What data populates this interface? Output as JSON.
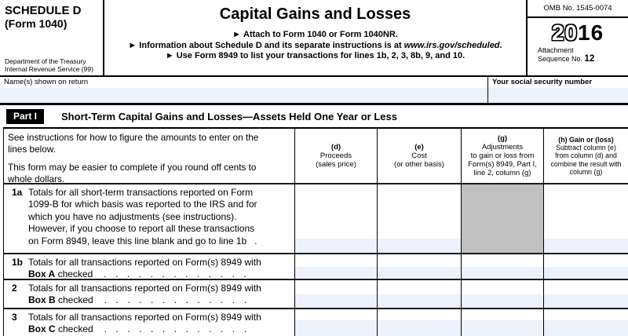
{
  "colors": {
    "field_fill": "#edf1fb",
    "shaded_cell": "#c1c1c1",
    "ink": "#000000"
  },
  "header": {
    "schedule": "SCHEDULE D",
    "form_number": "(Form 1040)",
    "dept_line1": "Department of the Treasury",
    "dept_line2": "Internal Revenue Service (99)",
    "title": "Capital Gains and Losses",
    "arrow": "►",
    "bullet1": "Attach to Form 1040 or Form 1040NR.",
    "bullet2_pre": "Information about Schedule D and its separate instructions is at ",
    "bullet2_link": "www.irs.gov/scheduled",
    "bullet2_post": ".",
    "bullet3": "Use Form 8949 to list your transactions for lines 1b, 2, 3, 8b, 9, and 10.",
    "omb": "OMB No. 1545-0074",
    "year_outline": "20",
    "year_bold": "16",
    "attachment_line1": "Attachment",
    "attachment_line2": "Sequence No. ",
    "sequence_number": "12"
  },
  "name_row": {
    "name_label": "Name(s) shown on return",
    "ssn_label": "Your social security number"
  },
  "part1": {
    "badge": "Part I",
    "heading": "Short-Term Capital Gains and Losses—Assets Held One Year or Less"
  },
  "table": {
    "instructions": [
      "See instructions for how to figure the amounts to enter on the\nlines below.",
      "This form may be easier to complete if you round off cents to\nwhole dollars."
    ],
    "columns": [
      {
        "head": "(d)",
        "lines": "Proceeds\n(sales price)"
      },
      {
        "head": "(e)",
        "lines": "Cost\n(or other basis)"
      },
      {
        "head": "(g)",
        "lines": "Adjustments\nto gain or loss from\nForm(s) 8949, Part I,\nline 2, column (g)"
      },
      {
        "head": "(h) Gain or (loss)",
        "lines": "Subtract column (e)\nfrom column (d) and\ncombine the result with\ncolumn (g)"
      }
    ],
    "rows": [
      {
        "num": "1a",
        "text": "Totals for all short-term transactions reported on Form\n1099-B for which basis was reported to the IRS and for\nwhich you have no adjustments (see instructions).\nHowever, if you choose to report all these transactions\non Form 8949, leave this line blank and go to line 1b   ."
      },
      {
        "num": "1b",
        "line1": "Totals for all transactions reported on Form(s) 8949 with",
        "box": "Box A",
        "after_box": " checked",
        "dots": "............."
      },
      {
        "num": "2",
        "line1": "Totals for all transactions reported on Form(s) 8949 with",
        "box": "Box B",
        "after_box": " checked",
        "dots": "............."
      },
      {
        "num": "3",
        "line1": "Totals for all transactions reported on Form(s) 8949 with",
        "box": "Box C",
        "after_box": " checked",
        "dots": "............."
      }
    ]
  }
}
